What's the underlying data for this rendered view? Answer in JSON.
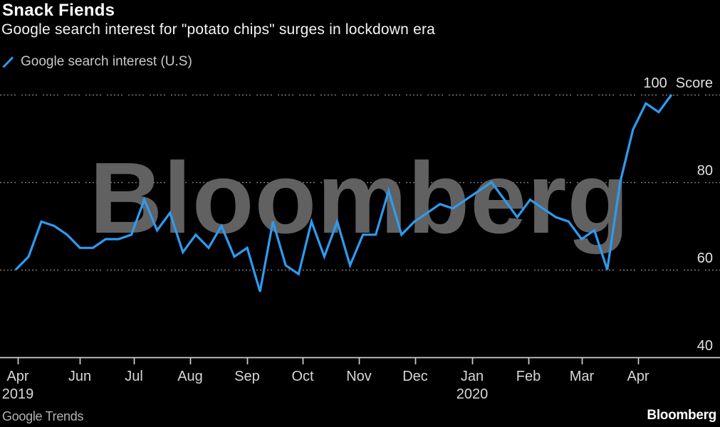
{
  "header": {
    "title": "Snack Fiends",
    "subtitle": "Google search interest for \"potato chips\" surges in lockdown era"
  },
  "legend": {
    "label": "Google search interest (U.S)"
  },
  "watermark": "Bloomberg",
  "footer": {
    "source": "Google Trends",
    "brand": "Bloomberg"
  },
  "colors": {
    "background": "#000000",
    "accent": "#2e9bf0",
    "watermark": "#616161",
    "gridline": "#909090",
    "axis": "#cfcfcf",
    "axis_label": "#d9d9d9"
  },
  "chart_data": {
    "type": "line",
    "title": "Snack Fiends",
    "subtitle": "Google search interest for \"potato chips\" surges in lockdown era",
    "source": "Google Trends",
    "unit": "Score",
    "cadence": "weekly",
    "x_range": [
      "Apr 2019",
      "Apr 2020"
    ],
    "ylim": [
      40,
      100
    ],
    "grid": "dotted horizontal lines at 60, 80, 100; solid baseline at 40",
    "legend_position": "top-left",
    "series": [
      {
        "name": "Google search interest (U.S)",
        "values": [
          60,
          63,
          71,
          70,
          68,
          65,
          65,
          67,
          67,
          68,
          76,
          69,
          73,
          64,
          68,
          65,
          70,
          63,
          65,
          55,
          71,
          61,
          59,
          71,
          63,
          71,
          61,
          68,
          68,
          78,
          68,
          71,
          73,
          75,
          74,
          76,
          78,
          80,
          76,
          72,
          76,
          74,
          72,
          71,
          67,
          69,
          60,
          80,
          92,
          98,
          96,
          100
        ]
      }
    ],
    "x_ticks": [
      {
        "label": "Apr",
        "sublabel": "2019"
      },
      {
        "label": "Jun"
      },
      {
        "label": "Jul"
      },
      {
        "label": "Aug"
      },
      {
        "label": "Sep"
      },
      {
        "label": "Oct"
      },
      {
        "label": "Nov"
      },
      {
        "label": "Dec"
      },
      {
        "label": "Jan",
        "sublabel": "2020"
      },
      {
        "label": "Feb"
      },
      {
        "label": "Mar"
      },
      {
        "label": "Apr"
      }
    ],
    "y_ticks": [
      {
        "value": 100,
        "label": "100",
        "suffix": "Score"
      },
      {
        "value": 80,
        "label": "80"
      },
      {
        "value": 60,
        "label": "60"
      },
      {
        "value": 40,
        "label": "40"
      }
    ]
  }
}
